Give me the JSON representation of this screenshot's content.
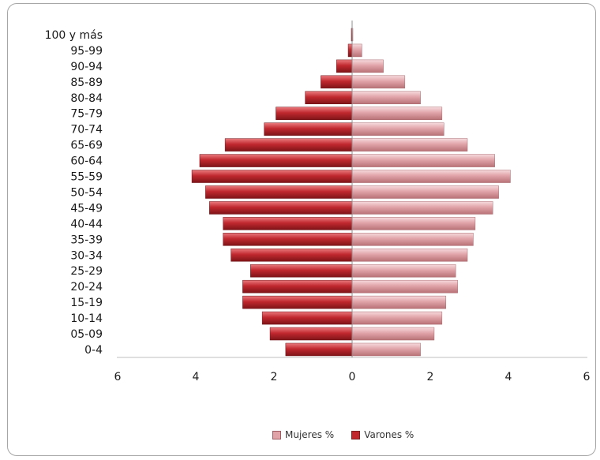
{
  "chart_data": {
    "type": "bar",
    "orientation": "horizontal-population-pyramid",
    "categories": [
      "0-4",
      "05-09",
      "10-14",
      "15-19",
      "20-24",
      "25-29",
      "30-34",
      "35-39",
      "40-44",
      "45-49",
      "50-54",
      "55-59",
      "60-64",
      "65-69",
      "70-74",
      "75-79",
      "80-84",
      "85-89",
      "90-94",
      "95-99",
      "100 y más"
    ],
    "series": [
      {
        "name": "Mujeres %",
        "color": "#e0a3a8",
        "values": [
          1.75,
          2.1,
          2.3,
          2.4,
          2.7,
          2.65,
          2.95,
          3.1,
          3.15,
          3.6,
          3.75,
          4.05,
          3.65,
          2.95,
          2.35,
          2.3,
          1.75,
          1.35,
          0.8,
          0.25,
          0.02
        ]
      },
      {
        "name": "Varones %",
        "color": "#c0282e",
        "values": [
          1.7,
          2.1,
          2.3,
          2.8,
          2.8,
          2.6,
          3.1,
          3.3,
          3.3,
          3.65,
          3.75,
          4.1,
          3.9,
          3.25,
          2.25,
          1.95,
          1.2,
          0.8,
          0.4,
          0.1,
          0.02
        ]
      }
    ],
    "xlim": [
      -6,
      6
    ],
    "xticks": [
      {
        "value": -6,
        "label": "6"
      },
      {
        "value": -4,
        "label": "4"
      },
      {
        "value": -2,
        "label": "2"
      },
      {
        "value": 0,
        "label": "0"
      },
      {
        "value": 2,
        "label": "2"
      },
      {
        "value": 4,
        "label": "4"
      },
      {
        "value": 6,
        "label": "6"
      }
    ],
    "legend_position": "bottom",
    "grid": false
  }
}
